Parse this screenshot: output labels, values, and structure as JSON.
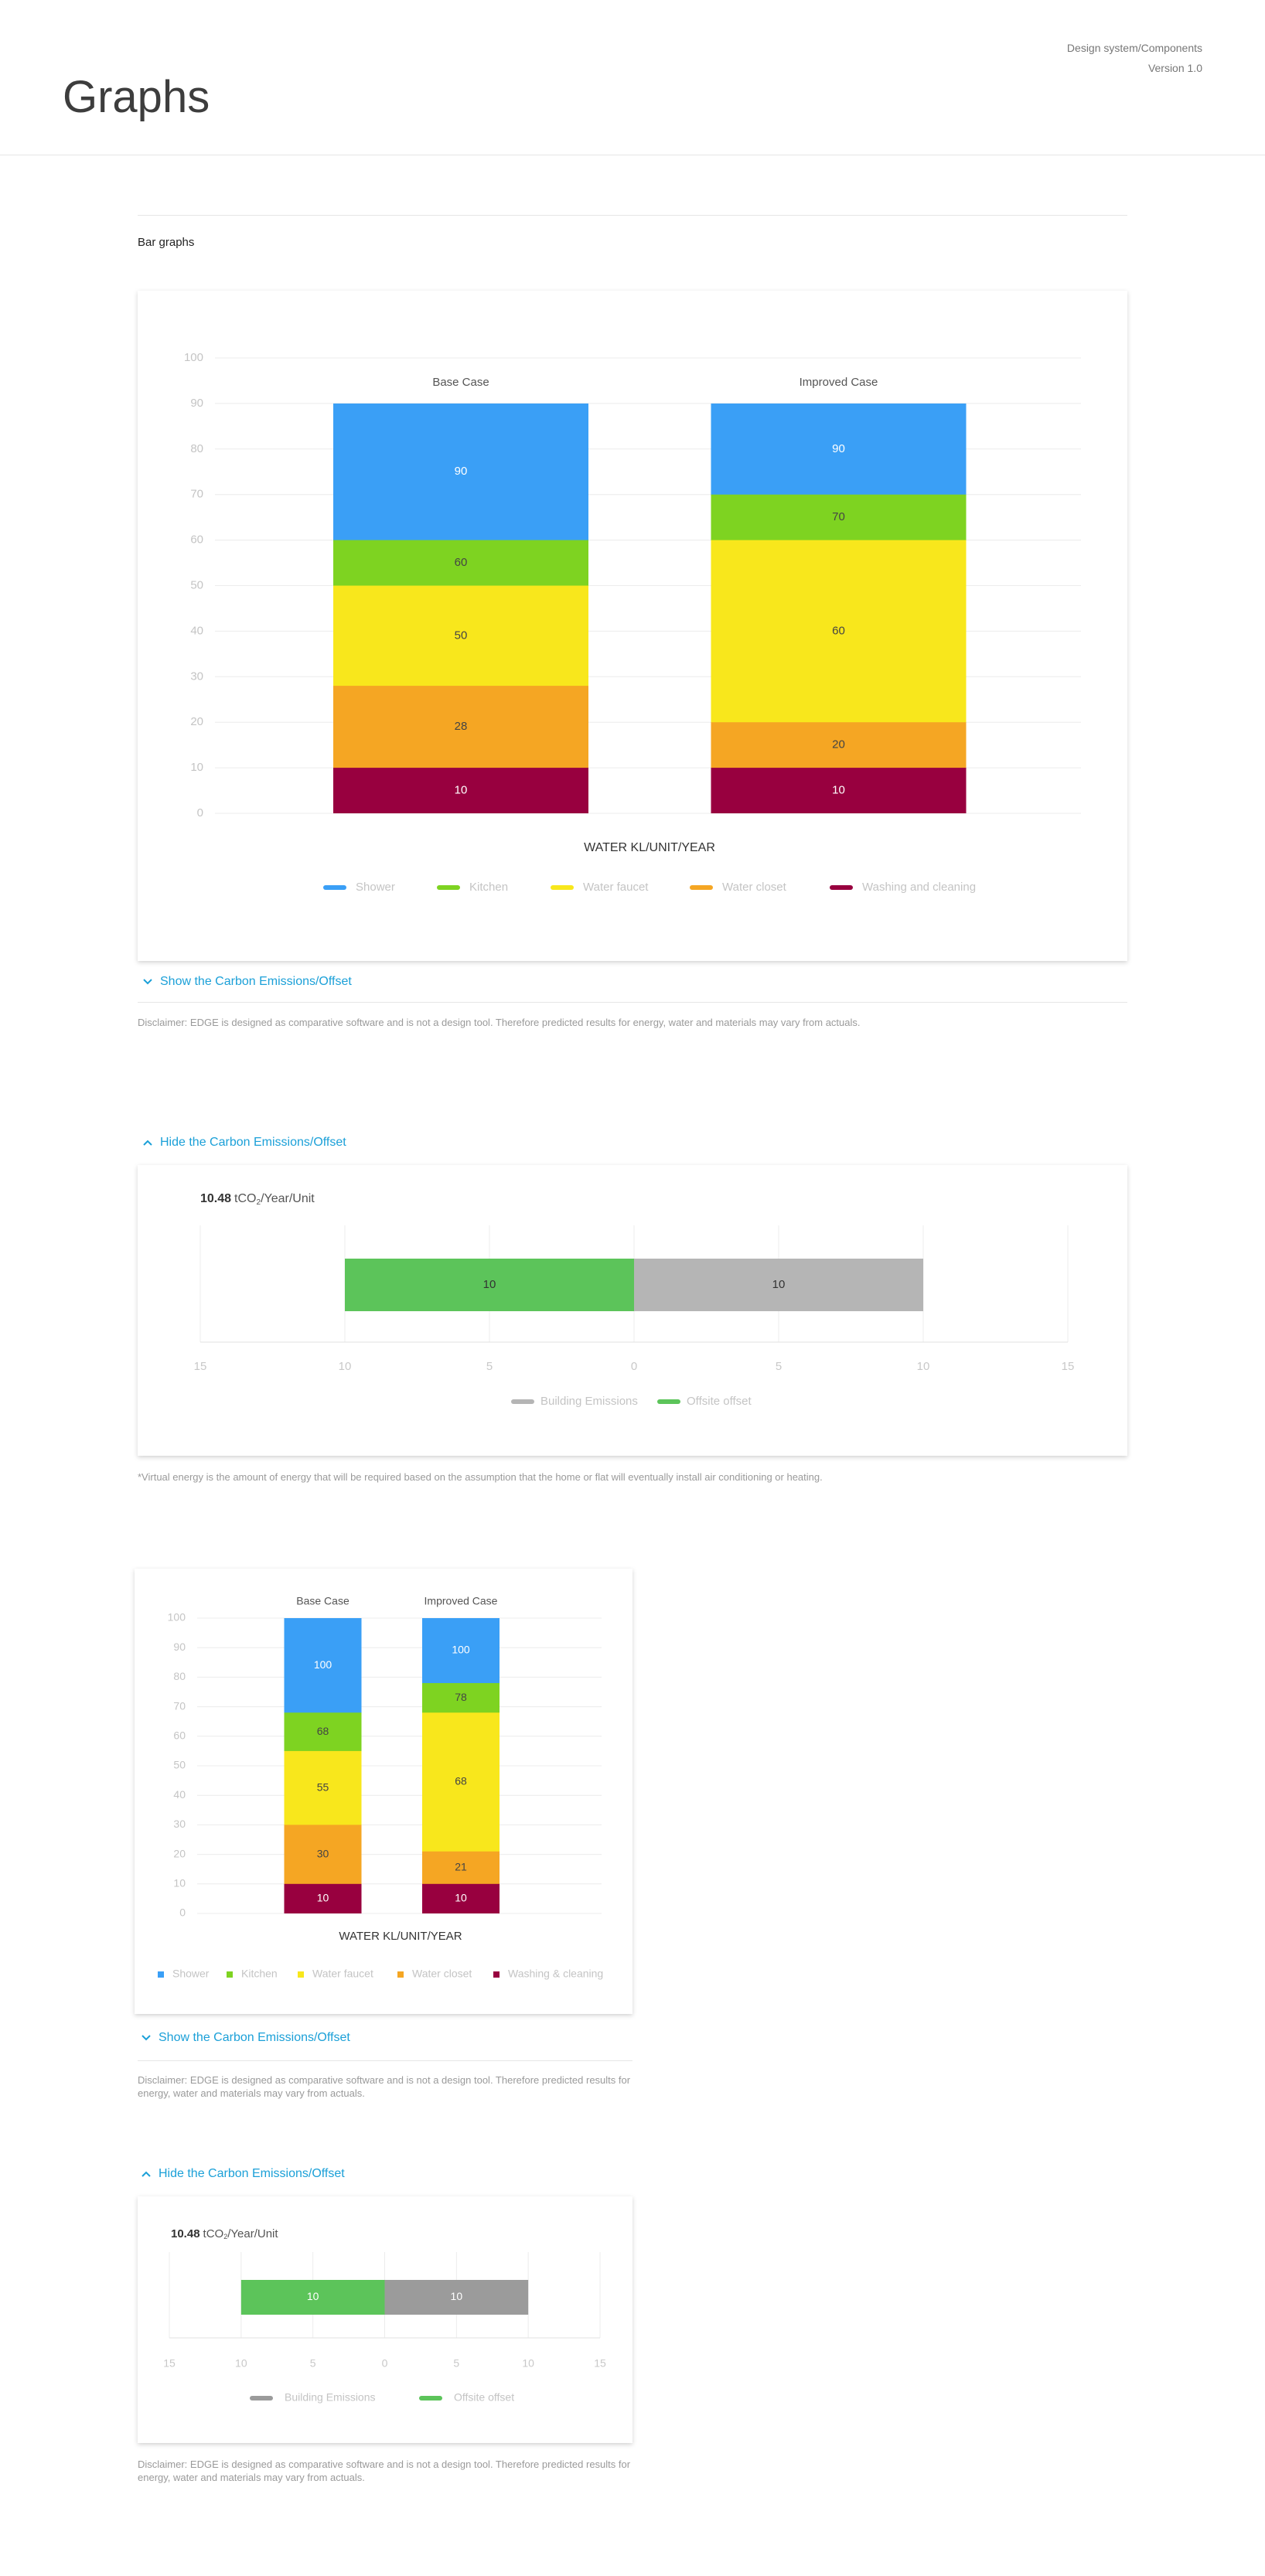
{
  "header": {
    "title": "Graphs",
    "breadcrumb": "Design system/Components",
    "version": "Version 1.0"
  },
  "section_title": "Bar graphs",
  "links": [
    "Show the Carbon Emissions/Offset",
    "Hide the Carbon Emissions/Offset",
    "Show the Carbon Emissions/Offset",
    "Hide the Carbon Emissions/Offset"
  ],
  "notes": [
    "Disclaimer: EDGE is designed as comparative software and is not a design tool. Therefore predicted results for energy, water and materials may vary from actuals.",
    "*Virtual energy is the amount of energy that will be required based on the assumption that the home or flat will eventually install air conditioning or heating.",
    "Disclaimer: EDGE is designed as comparative software and is not a design tool. Therefore predicted results for energy, water and materials may vary from actuals.",
    "Disclaimer: EDGE is designed as comparative software and is not a design tool. Therefore predicted results for energy, water and materials may vary from actuals."
  ],
  "chart_data": [
    {
      "type": "bar",
      "categories": [
        "Base Case",
        "Improved Case"
      ],
      "series": [
        {
          "name": "Shower",
          "color": "#3a9ff6",
          "values": [
            90,
            90
          ]
        },
        {
          "name": "Kitchen",
          "color": "#7ed321",
          "values": [
            60,
            70
          ]
        },
        {
          "name": "Water faucet",
          "color": "#f8e71c",
          "values": [
            50,
            60
          ]
        },
        {
          "name": "Water closet",
          "color": "#f5a623",
          "values": [
            28,
            20
          ]
        },
        {
          "name": "Washing and cleaning",
          "color": "#98003f",
          "values": [
            10,
            10
          ]
        }
      ],
      "ylim": [
        0,
        100
      ],
      "yticks": [
        0,
        10,
        20,
        30,
        40,
        50,
        60,
        70,
        80,
        90,
        100
      ],
      "grid": true,
      "xlabel": "WATER KL/UNIT/YEAR",
      "legend": "bottom"
    },
    {
      "type": "hbar",
      "title": {
        "value": 10.48,
        "unit": "tCO",
        "sub": "2",
        "suffix": "/Year/Unit"
      },
      "series": [
        {
          "name": "Building Emissions",
          "color": "#b5b5b5",
          "values": [
            10
          ]
        },
        {
          "name": "Offsite offset",
          "color": "#5cc45a",
          "values": [
            -10
          ],
          "value_labels": [
            "10"
          ]
        }
      ],
      "xlim": [
        -15,
        15
      ],
      "xticks": [
        {
          "value": -15,
          "label": "15"
        },
        {
          "value": -10,
          "label": "10"
        },
        {
          "value": -5,
          "label": "5"
        },
        0,
        5,
        10,
        15
      ],
      "grid": true,
      "legend": "bottom"
    },
    {
      "type": "bar",
      "categories": [
        "Base Case",
        "Improved Case"
      ],
      "series": [
        {
          "name": "Shower",
          "color": "#3a9ff6",
          "values": [
            100,
            100
          ]
        },
        {
          "name": "Kitchen",
          "color": "#7ed321",
          "values": [
            68,
            78
          ]
        },
        {
          "name": "Water faucet",
          "color": "#f8e71c",
          "values": [
            55,
            68
          ]
        },
        {
          "name": "Water closet",
          "color": "#f5a623",
          "values": [
            30,
            21
          ]
        },
        {
          "name": "Washing & cleaning",
          "color": "#98003f",
          "values": [
            10,
            10
          ]
        }
      ],
      "ylim": [
        0,
        100
      ],
      "yticks": [
        0,
        10,
        20,
        30,
        40,
        50,
        60,
        70,
        80,
        90,
        100
      ],
      "grid": true,
      "xlabel": "WATER KL/UNIT/YEAR",
      "legend": "bottom"
    },
    {
      "type": "hbar",
      "title": {
        "value": 10.48,
        "unit": "tCO",
        "sub": "2",
        "suffix": "/Year/Unit"
      },
      "series": [
        {
          "name": "Building Emissions",
          "color": "#9b9b9b",
          "values": [
            10
          ]
        },
        {
          "name": "Offsite offset",
          "color": "#5cc45a",
          "values": [
            -10
          ],
          "value_labels": [
            "10"
          ]
        }
      ],
      "xlim": [
        -15,
        15
      ],
      "xticks": [
        {
          "value": -15,
          "label": "15"
        },
        {
          "value": -10,
          "label": "10"
        },
        {
          "value": -5,
          "label": "5"
        },
        0,
        5,
        10,
        15
      ],
      "grid": true,
      "legend": "bottom"
    }
  ]
}
